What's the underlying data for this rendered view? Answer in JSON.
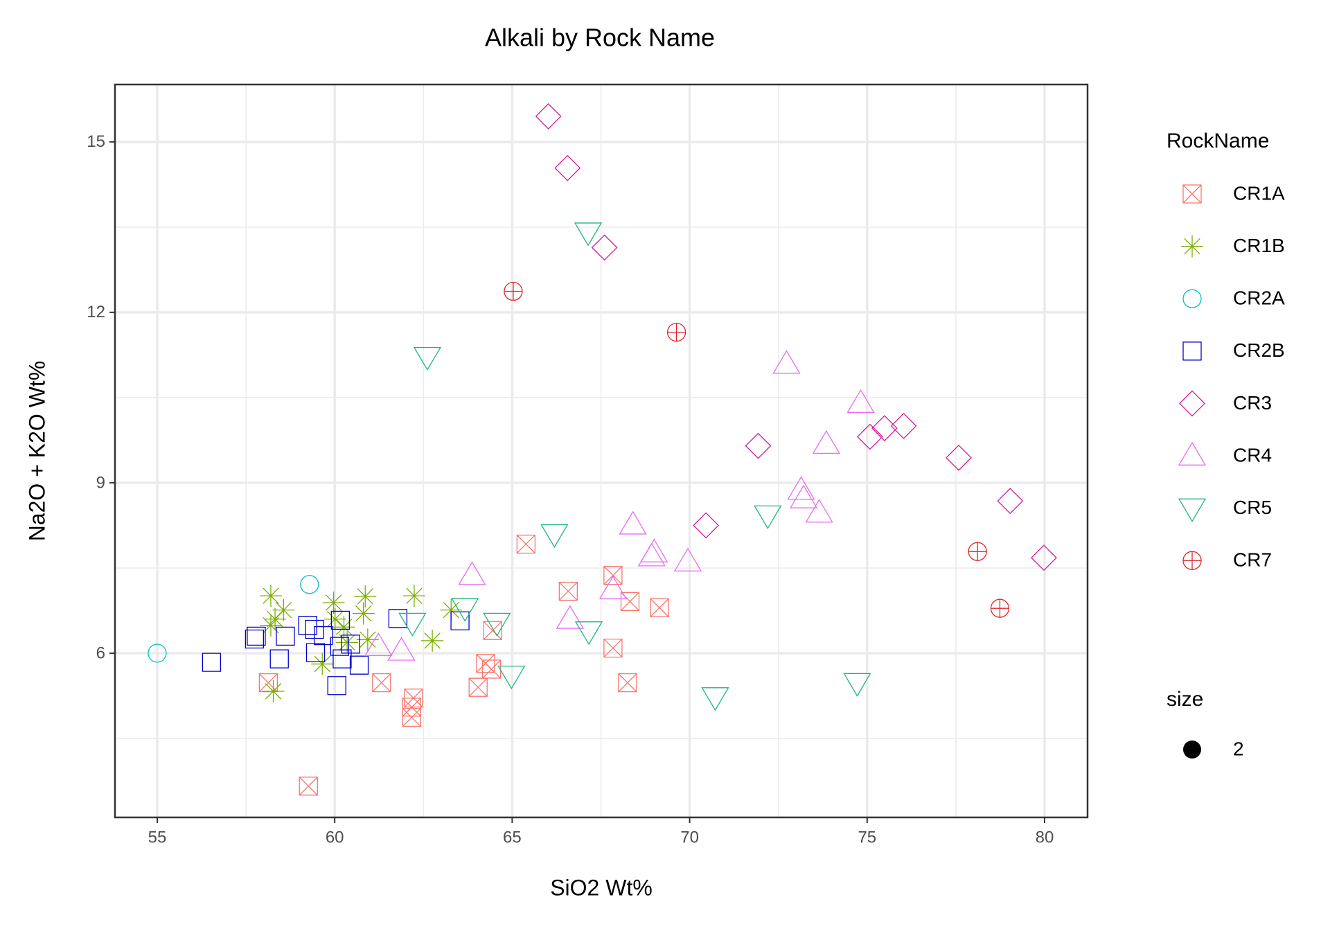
{
  "chart_data": {
    "type": "scatter",
    "title": "Alkali by Rock Name",
    "x_label": "SiO2 Wt%",
    "y_label": "Na2O + K2O Wt%",
    "xlim": [
      53.81,
      81.21
    ],
    "ylim": [
      3.11,
      16.01
    ],
    "xticks": [
      55,
      60,
      65,
      70,
      75,
      80
    ],
    "yticks": [
      6,
      9,
      12,
      15
    ],
    "x_minor_grid": [
      57.5,
      62.5,
      67.5,
      72.5,
      77.5
    ],
    "y_minor_grid": [
      4.5,
      7.5,
      10.5,
      13.5
    ],
    "grid": true,
    "legend_title": "RockName",
    "size_title": "size",
    "size": 2,
    "series": [
      {
        "name": "CR1A",
        "color": "#F8766D",
        "shape": "square-x",
        "x": [
          58.13,
          59.26,
          61.32,
          62.17,
          62.22,
          62.17,
          64.04,
          64.25,
          64.42,
          64.45,
          65.39,
          66.58,
          67.84,
          67.84,
          68.32,
          68.25,
          69.15
        ],
        "y": [
          5.48,
          3.66,
          5.48,
          5.05,
          5.21,
          4.87,
          5.4,
          5.82,
          5.72,
          6.4,
          7.92,
          7.09,
          7.37,
          6.09,
          6.91,
          5.48,
          6.8
        ]
      },
      {
        "name": "CR1B",
        "color": "#7CAE00",
        "shape": "asterisk",
        "x": [
          58.2,
          58.32,
          58.56,
          58.27,
          59.65,
          59.97,
          60.01,
          60.26,
          60.35,
          60.86,
          60.81,
          60.93,
          62.24,
          62.75,
          63.28,
          58.2
        ],
        "y": [
          7.01,
          6.6,
          6.76,
          5.33,
          5.81,
          6.89,
          6.6,
          6.46,
          6.19,
          7.0,
          6.7,
          6.24,
          7.01,
          6.22,
          6.76,
          6.49
        ]
      },
      {
        "name": "CR2A",
        "color": "#00BFC4",
        "shape": "circle",
        "x": [
          55.0,
          59.29
        ],
        "y": [
          6.0,
          7.21
        ]
      },
      {
        "name": "CR2B",
        "color": "#0000CD",
        "shape": "square",
        "x": [
          56.53,
          57.74,
          57.79,
          58.44,
          58.61,
          59.24,
          59.43,
          59.46,
          59.68,
          60.06,
          60.16,
          60.14,
          60.21,
          60.45,
          60.69,
          61.78,
          63.53
        ],
        "y": [
          5.84,
          6.25,
          6.3,
          5.9,
          6.3,
          6.49,
          6.42,
          6.01,
          6.31,
          5.43,
          6.58,
          6.12,
          5.9,
          6.16,
          5.79,
          6.61,
          6.57
        ]
      },
      {
        "name": "CR3",
        "color": "#D4199B",
        "shape": "diamond",
        "x": [
          66.02,
          66.56,
          67.6,
          71.93,
          70.46,
          75.08,
          75.49,
          76.03,
          77.58,
          79.03,
          79.98
        ],
        "y": [
          15.45,
          14.54,
          13.14,
          9.65,
          8.25,
          9.81,
          9.96,
          10.0,
          9.44,
          8.68,
          7.68
        ]
      },
      {
        "name": "CR4",
        "color": "#E76BF3",
        "shape": "triangle",
        "x": [
          72.73,
          74.82,
          73.85,
          73.14,
          73.21,
          73.65,
          68.4,
          69.0,
          68.93,
          69.95,
          67.84,
          63.87,
          66.63,
          61.88,
          61.23
        ],
        "y": [
          11.09,
          10.4,
          9.68,
          8.87,
          8.72,
          8.47,
          8.26,
          7.77,
          7.7,
          7.61,
          7.12,
          7.37,
          6.6,
          6.04,
          6.12
        ]
      },
      {
        "name": "CR5",
        "color": "#1FB57A",
        "shape": "triangle-down",
        "x": [
          67.14,
          62.61,
          66.19,
          72.2,
          63.67,
          64.57,
          62.19,
          67.16,
          64.98,
          70.72,
          74.72
        ],
        "y": [
          13.41,
          11.22,
          8.1,
          8.43,
          6.8,
          6.54,
          6.54,
          6.39,
          5.61,
          5.23,
          5.48
        ]
      },
      {
        "name": "CR7",
        "color": "#E0262A",
        "shape": "circle-plus",
        "x": [
          65.03,
          69.63,
          78.11,
          78.74
        ],
        "y": [
          12.37,
          11.65,
          7.79,
          6.79
        ]
      }
    ]
  }
}
